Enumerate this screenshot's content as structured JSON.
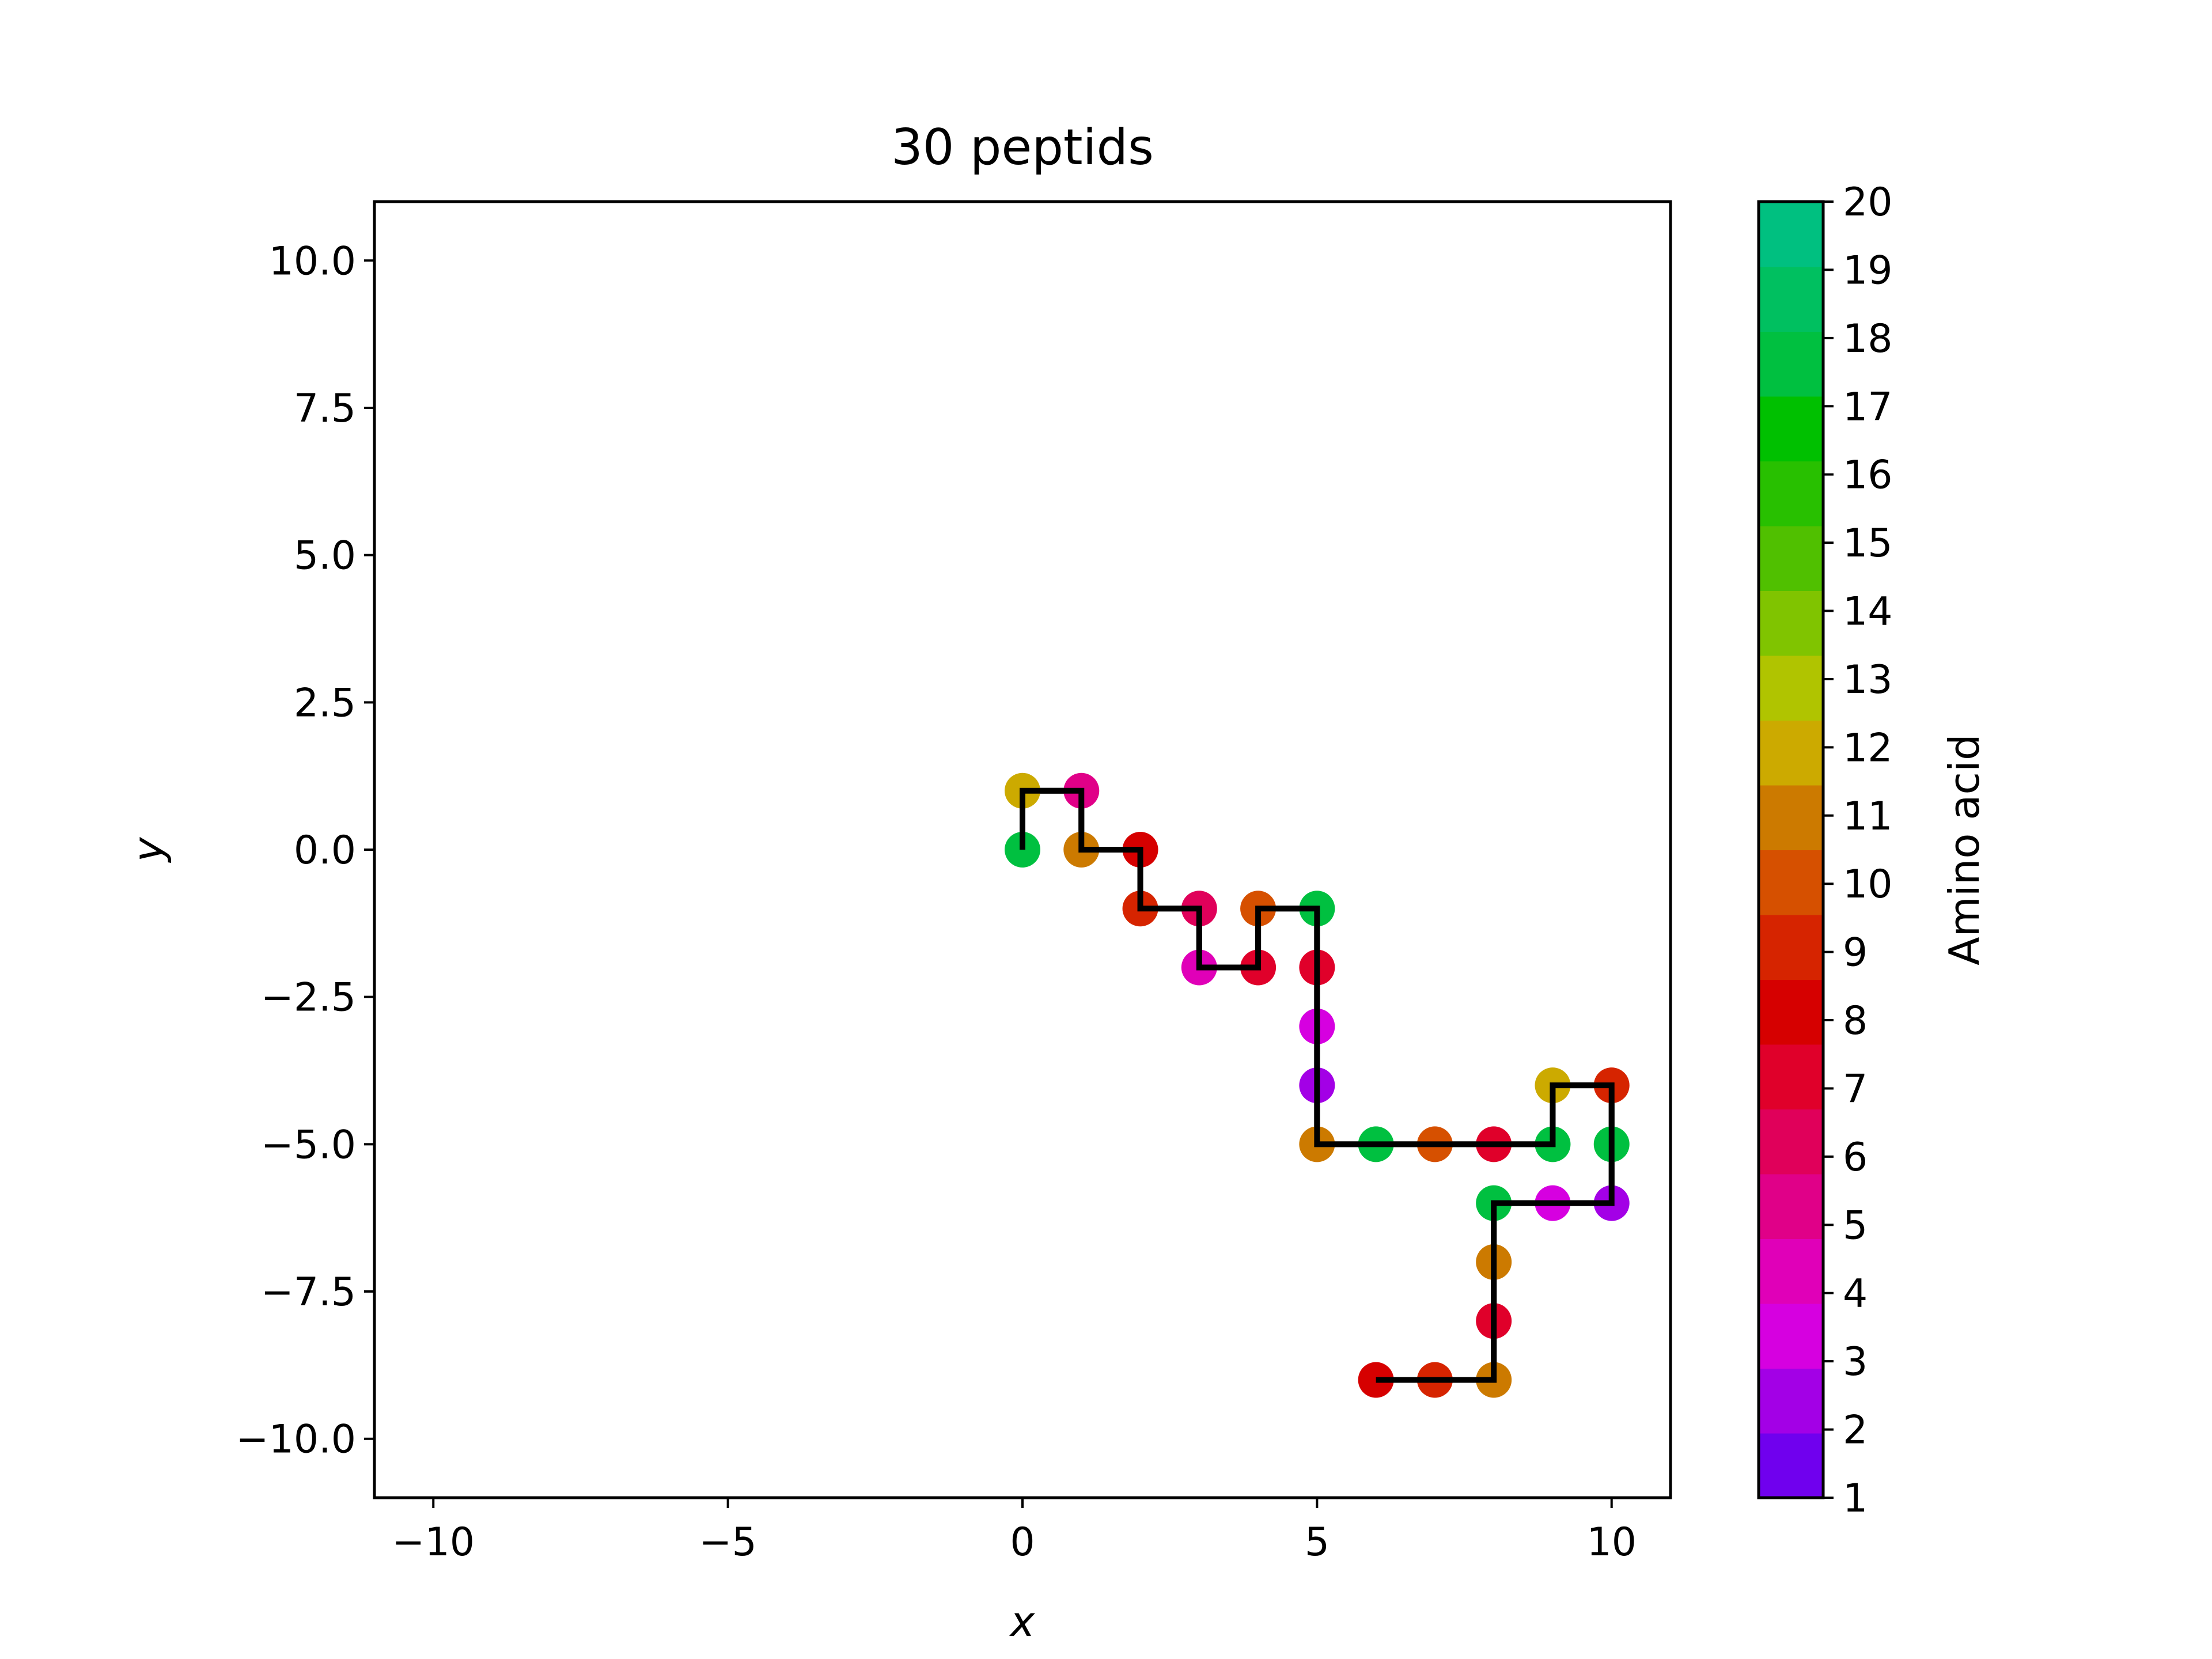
{
  "chart_data": {
    "type": "scatter",
    "title": "30 peptids",
    "xlabel": "x",
    "ylabel": "y",
    "xlim": [
      -11,
      11
    ],
    "ylim": [
      -11,
      11
    ],
    "xticks": [
      -10,
      -5,
      0,
      5,
      10
    ],
    "xtick_labels": [
      "−10",
      "−5",
      "0",
      "5",
      "10"
    ],
    "yticks": [
      10,
      7.5,
      5,
      2.5,
      0,
      -2.5,
      -5,
      -7.5,
      -10
    ],
    "ytick_labels": [
      "10.0",
      "7.5",
      "5.0",
      "2.5",
      "0.0",
      "−2.5",
      "−5.0",
      "−7.5",
      "−10.0"
    ],
    "grid": false,
    "points": [
      {
        "x": 0,
        "y": 0,
        "amino_acid": 18
      },
      {
        "x": 0,
        "y": 1,
        "amino_acid": 12
      },
      {
        "x": 1,
        "y": 1,
        "amino_acid": 5
      },
      {
        "x": 1,
        "y": 0,
        "amino_acid": 11
      },
      {
        "x": 2,
        "y": 0,
        "amino_acid": 8
      },
      {
        "x": 2,
        "y": -1,
        "amino_acid": 9
      },
      {
        "x": 3,
        "y": -1,
        "amino_acid": 6
      },
      {
        "x": 3,
        "y": -2,
        "amino_acid": 4
      },
      {
        "x": 4,
        "y": -2,
        "amino_acid": 7
      },
      {
        "x": 4,
        "y": -1,
        "amino_acid": 10
      },
      {
        "x": 5,
        "y": -1,
        "amino_acid": 18
      },
      {
        "x": 5,
        "y": -2,
        "amino_acid": 7
      },
      {
        "x": 5,
        "y": -3,
        "amino_acid": 3
      },
      {
        "x": 5,
        "y": -4,
        "amino_acid": 2
      },
      {
        "x": 5,
        "y": -5,
        "amino_acid": 11
      },
      {
        "x": 6,
        "y": -5,
        "amino_acid": 18
      },
      {
        "x": 7,
        "y": -5,
        "amino_acid": 10
      },
      {
        "x": 8,
        "y": -5,
        "amino_acid": 7
      },
      {
        "x": 9,
        "y": -5,
        "amino_acid": 18
      },
      {
        "x": 9,
        "y": -4,
        "amino_acid": 12
      },
      {
        "x": 10,
        "y": -4,
        "amino_acid": 9
      },
      {
        "x": 10,
        "y": -5,
        "amino_acid": 18
      },
      {
        "x": 10,
        "y": -6,
        "amino_acid": 2
      },
      {
        "x": 9,
        "y": -6,
        "amino_acid": 3
      },
      {
        "x": 8,
        "y": -6,
        "amino_acid": 18
      },
      {
        "x": 8,
        "y": -7,
        "amino_acid": 11
      },
      {
        "x": 8,
        "y": -8,
        "amino_acid": 7
      },
      {
        "x": 8,
        "y": -9,
        "amino_acid": 11
      },
      {
        "x": 7,
        "y": -9,
        "amino_acid": 9
      },
      {
        "x": 6,
        "y": -9,
        "amino_acid": 8
      }
    ],
    "line_color": "#000000",
    "colorbar": {
      "label": "Amino acid",
      "range": [
        1,
        20
      ],
      "ticks": [
        "1",
        "2",
        "3",
        "4",
        "5",
        "6",
        "7",
        "8",
        "9",
        "10",
        "11",
        "12",
        "13",
        "14",
        "15",
        "16",
        "17",
        "18",
        "19",
        "20"
      ],
      "colors": [
        "#7000ee",
        "#a300e6",
        "#d600e0",
        "#e000b8",
        "#e00088",
        "#e0005a",
        "#e0002a",
        "#d60000",
        "#d62400",
        "#d65000",
        "#cc7a00",
        "#ccaa00",
        "#b0c400",
        "#80c400",
        "#50c000",
        "#28c000",
        "#00c000",
        "#00c040",
        "#00c060",
        "#00c080"
      ]
    }
  }
}
